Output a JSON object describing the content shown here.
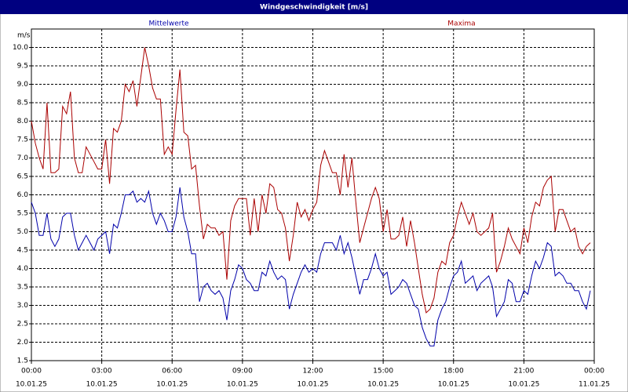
{
  "chart_data": {
    "type": "line",
    "title": "Windgeschwindigkeit [m/s]",
    "y_unit": "m/s",
    "x": [
      0,
      10,
      20,
      30,
      40,
      50,
      60,
      70,
      80,
      90,
      100,
      110,
      120,
      130,
      140,
      150,
      160,
      170,
      180,
      190,
      200,
      210,
      220,
      230,
      240,
      250,
      260,
      270,
      280,
      290,
      300,
      310,
      320,
      330,
      340,
      350,
      360,
      370,
      380,
      390,
      400,
      410,
      420,
      430,
      440,
      450,
      460,
      470,
      480,
      490,
      500,
      510,
      520,
      530,
      540,
      550,
      560,
      570,
      580,
      590,
      600,
      610,
      620,
      630,
      640,
      650,
      660,
      670,
      680,
      690,
      700,
      710,
      720,
      730,
      740,
      750,
      760,
      770,
      780,
      790,
      800,
      810,
      820,
      830,
      840,
      850,
      860,
      870,
      880,
      890,
      900,
      910,
      920,
      930,
      940,
      950,
      960,
      970,
      980,
      990,
      1000,
      1010,
      1020,
      1030,
      1040,
      1050,
      1060,
      1070,
      1080,
      1090,
      1100,
      1110,
      1120,
      1130,
      1140,
      1150,
      1160,
      1170,
      1180,
      1190,
      1200,
      1210,
      1220,
      1230,
      1240,
      1250,
      1260,
      1270,
      1280,
      1290,
      1300,
      1310,
      1320,
      1330,
      1340,
      1350,
      1360,
      1370,
      1380,
      1390,
      1400,
      1410,
      1420,
      1430
    ],
    "series": [
      {
        "name": "Mittelwerte",
        "color": "#0000aa",
        "values": [
          5.8,
          5.5,
          4.9,
          4.9,
          5.5,
          4.8,
          4.6,
          4.8,
          5.4,
          5.5,
          5.5,
          4.9,
          4.5,
          4.7,
          4.9,
          4.7,
          4.5,
          4.8,
          4.9,
          5.0,
          4.4,
          5.2,
          5.1,
          5.5,
          6.0,
          6.0,
          6.1,
          5.8,
          5.9,
          5.8,
          6.1,
          5.5,
          5.2,
          5.5,
          5.3,
          5.0,
          5.0,
          5.4,
          6.2,
          5.4,
          5.0,
          4.4,
          4.4,
          3.1,
          3.5,
          3.6,
          3.4,
          3.3,
          3.4,
          3.2,
          2.6,
          3.4,
          3.7,
          4.1,
          4.0,
          3.7,
          3.6,
          3.4,
          3.4,
          3.9,
          3.8,
          4.2,
          3.9,
          3.7,
          3.8,
          3.7,
          2.9,
          3.3,
          3.6,
          3.9,
          4.1,
          3.9,
          4.0,
          3.9,
          4.4,
          4.7,
          4.7,
          4.7,
          4.5,
          4.9,
          4.4,
          4.7,
          4.3,
          3.8,
          3.3,
          3.7,
          3.7,
          4.0,
          4.4,
          4.0,
          3.8,
          3.9,
          3.3,
          3.4,
          3.5,
          3.7,
          3.6,
          3.3,
          3.0,
          2.9,
          2.4,
          2.1,
          1.9,
          1.9,
          2.6,
          2.9,
          3.1,
          3.5,
          3.8,
          3.9,
          4.2,
          3.6,
          3.7,
          3.8,
          3.4,
          3.6,
          3.7,
          3.8,
          3.5,
          2.7,
          2.9,
          3.1,
          3.7,
          3.6,
          3.1,
          3.1,
          3.4,
          3.3,
          3.8,
          4.2,
          4.0,
          4.3,
          4.7,
          4.6,
          3.8,
          3.9,
          3.8,
          3.6,
          3.6,
          3.4,
          3.4,
          3.1,
          2.9,
          3.4
        ]
      },
      {
        "name": "Maxima",
        "color": "#aa0000",
        "values": [
          8.0,
          7.4,
          7.0,
          6.7,
          8.5,
          6.6,
          6.6,
          6.7,
          8.4,
          8.2,
          8.8,
          7.0,
          6.6,
          6.6,
          7.3,
          7.1,
          6.9,
          6.7,
          6.7,
          7.5,
          6.3,
          7.8,
          7.7,
          8.0,
          9.0,
          8.8,
          9.1,
          8.4,
          9.2,
          10.0,
          9.5,
          8.9,
          8.6,
          8.6,
          7.1,
          7.3,
          7.1,
          8.3,
          9.4,
          7.7,
          7.6,
          6.7,
          6.8,
          5.7,
          4.8,
          5.2,
          5.1,
          5.1,
          4.9,
          5.0,
          3.7,
          5.3,
          5.7,
          5.9,
          5.9,
          5.9,
          4.9,
          5.9,
          5.0,
          6.0,
          5.5,
          6.3,
          6.2,
          5.6,
          5.5,
          5.1,
          4.2,
          4.9,
          5.8,
          5.4,
          5.6,
          5.3,
          5.6,
          5.8,
          6.8,
          7.2,
          6.9,
          6.6,
          6.6,
          6.0,
          7.1,
          6.2,
          7.0,
          5.8,
          4.7,
          5.1,
          5.5,
          5.9,
          6.2,
          5.9,
          5.0,
          5.6,
          4.8,
          4.8,
          4.9,
          5.4,
          4.6,
          5.3,
          4.7,
          4.0,
          3.3,
          2.8,
          2.9,
          3.2,
          3.9,
          4.2,
          4.1,
          4.7,
          4.9,
          5.4,
          5.8,
          5.5,
          5.2,
          5.5,
          5.0,
          4.9,
          5.0,
          5.1,
          5.5,
          3.9,
          4.2,
          4.6,
          5.1,
          4.8,
          4.6,
          4.4,
          5.1,
          4.7,
          5.4,
          5.8,
          5.7,
          6.2,
          6.4,
          6.5,
          5.0,
          5.6,
          5.6,
          5.3,
          5.0,
          5.1,
          4.6,
          4.4,
          4.6,
          4.7
        ]
      }
    ],
    "xlim": [
      0,
      1440
    ],
    "xticks": [
      {
        "value": 0,
        "label": "00:00"
      },
      {
        "value": 180,
        "label": "03:00"
      },
      {
        "value": 360,
        "label": "06:00"
      },
      {
        "value": 540,
        "label": "09:00"
      },
      {
        "value": 720,
        "label": "12:00"
      },
      {
        "value": 900,
        "label": "15:00"
      },
      {
        "value": 1080,
        "label": "18:00"
      },
      {
        "value": 1260,
        "label": "21:00"
      },
      {
        "value": 1440,
        "label": "00:00"
      }
    ],
    "xtick_dates": [
      "10.01.25",
      "10.01.25",
      "10.01.25",
      "10.01.25",
      "10.01.25",
      "10.01.25",
      "10.01.25",
      "10.01.25",
      "11.01.25"
    ],
    "ylim": [
      1.5,
      10.5
    ],
    "yticks": [
      1.5,
      {
        "value": 2,
        "label": "2.0"
      },
      2.5,
      {
        "value": 3,
        "label": "3.0"
      },
      3.5,
      {
        "value": 4,
        "label": "4.0"
      },
      4.5,
      {
        "value": 5,
        "label": "5.0"
      },
      5.5,
      {
        "value": 6,
        "label": "6.0"
      },
      6.5,
      {
        "value": 7,
        "label": "7.0"
      },
      7.5,
      {
        "value": 8,
        "label": "8.0"
      },
      8.5,
      {
        "value": 9,
        "label": "9.0"
      },
      9.5,
      {
        "value": 10,
        "label": "10.0"
      }
    ],
    "grid": true
  }
}
